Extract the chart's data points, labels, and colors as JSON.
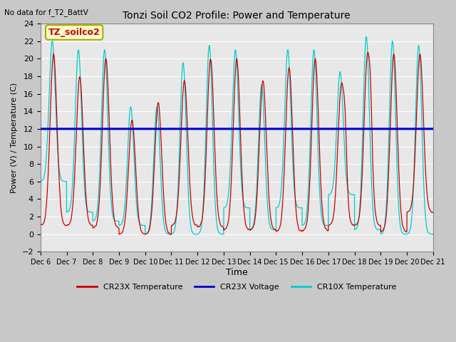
{
  "title": "Tonzi Soil CO2 Profile: Power and Temperature",
  "subtitle": "No data for f_T2_BattV",
  "ylabel": "Power (V) / Temperature (C)",
  "xlabel": "Time",
  "ylim": [
    -2,
    24
  ],
  "yticks": [
    -2,
    0,
    2,
    4,
    6,
    8,
    10,
    12,
    14,
    16,
    18,
    20,
    22,
    24
  ],
  "xtick_labels": [
    "Dec 6",
    "Dec 7",
    "Dec 8",
    "Dec 9",
    "Dec 10",
    "Dec 11",
    "Dec 12",
    "Dec 13",
    "Dec 14",
    "Dec 15",
    "Dec 16",
    "Dec 17",
    "Dec 18",
    "Dec 19",
    "Dec 20",
    "Dec 21"
  ],
  "plot_bg_color": "#e8e8e8",
  "fig_bg_color": "#c8c8c8",
  "legend_box_color": "#ffffcc",
  "legend_box_edge": "#aaaa00",
  "cr23x_temp_color": "#cc0000",
  "cr23x_volt_color": "#0000cc",
  "cr10x_temp_color": "#00cccc",
  "voltage_value": 12.0,
  "label_box": "TZ_soilco2",
  "figsize": [
    6.4,
    4.8
  ],
  "dpi": 100
}
